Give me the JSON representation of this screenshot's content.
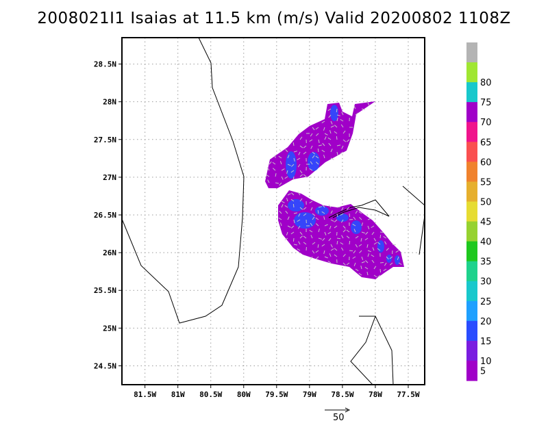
{
  "title": "2008021I1 Isaias at 11.5 km (m/s) Valid 20200802 1108Z",
  "map": {
    "lon_range": [
      -81.85,
      -77.25
    ],
    "lat_range": [
      24.25,
      28.85
    ],
    "lat_ticks": [
      {
        "value": 28.5,
        "label": "28.5N"
      },
      {
        "value": 28.0,
        "label": "28N"
      },
      {
        "value": 27.5,
        "label": "27.5N"
      },
      {
        "value": 27.0,
        "label": "27N"
      },
      {
        "value": 26.5,
        "label": "26.5N"
      },
      {
        "value": 26.0,
        "label": "26N"
      },
      {
        "value": 25.5,
        "label": "25.5N"
      },
      {
        "value": 25.0,
        "label": "25N"
      },
      {
        "value": 24.5,
        "label": "24.5N"
      }
    ],
    "lon_ticks": [
      {
        "value": -81.5,
        "label": "81.5W"
      },
      {
        "value": -81.0,
        "label": "81W"
      },
      {
        "value": -80.5,
        "label": "80.5W"
      },
      {
        "value": -80.0,
        "label": "80W"
      },
      {
        "value": -79.5,
        "label": "79.5W"
      },
      {
        "value": -79.0,
        "label": "79W"
      },
      {
        "value": -78.5,
        "label": "78.5W"
      },
      {
        "value": -78.0,
        "label": "78W"
      },
      {
        "value": -77.5,
        "label": "77.5W"
      }
    ],
    "grid": "dotted"
  },
  "colorbar": {
    "unit": "m/s",
    "bins": [
      {
        "color": "#a000c8",
        "label": "5"
      },
      {
        "color": "#7a1de0",
        "label": "10"
      },
      {
        "color": "#2a4cff",
        "label": "15"
      },
      {
        "color": "#1ea0ff",
        "label": "20"
      },
      {
        "color": "#18c8cc",
        "label": "25"
      },
      {
        "color": "#1ed28c",
        "label": "30"
      },
      {
        "color": "#1ec81e",
        "label": "35"
      },
      {
        "color": "#96d230",
        "label": "40"
      },
      {
        "color": "#e6dc32",
        "label": "45"
      },
      {
        "color": "#e6af2d",
        "label": "50"
      },
      {
        "color": "#f0822d",
        "label": "55"
      },
      {
        "color": "#fa5050",
        "label": "60"
      },
      {
        "color": "#f0148c",
        "label": "65"
      },
      {
        "color": "#a000c8",
        "label": "70"
      },
      {
        "color": "#18c8cc",
        "label": "75"
      },
      {
        "color": "#a0e632",
        "label": "80"
      },
      {
        "color": "#b4b4b4",
        "label": ""
      }
    ]
  },
  "reference_vector": {
    "label": "50",
    "unit": "m/s"
  },
  "colors": {
    "field_primary": "#a000c8",
    "field_secondary": "#2a4cff",
    "coast": "#000000",
    "vector": "#c8c8c8"
  }
}
